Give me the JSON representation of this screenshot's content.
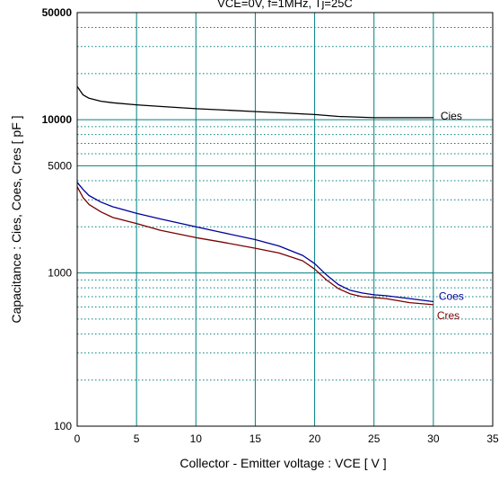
{
  "chart_data": {
    "type": "line",
    "title": "VCE=0V, f=1MHz, Tj=25C",
    "xlabel": "Collector - Emitter voltage  :  VCE  [ V ]",
    "ylabel": "Capacitance  :  Cies, Coes, Cres  [ pF ]",
    "xlim": [
      0,
      35
    ],
    "ylim": [
      100,
      50000
    ],
    "yscale": "log",
    "x_ticks": [
      "0",
      "5",
      "10",
      "15",
      "20",
      "25",
      "30",
      "35"
    ],
    "y_ticks": [
      {
        "value": 100,
        "label": "100"
      },
      {
        "value": 1000,
        "label": "1000"
      },
      {
        "value": 5000,
        "label": "5000"
      },
      {
        "value": 10000,
        "label": "10000"
      },
      {
        "value": 50000,
        "label": "50000"
      }
    ],
    "grid": true,
    "series": [
      {
        "name": "Cies",
        "color": "#000000",
        "points": [
          [
            0,
            16500
          ],
          [
            0.5,
            14500
          ],
          [
            1,
            13800
          ],
          [
            2,
            13200
          ],
          [
            3,
            12900
          ],
          [
            5,
            12500
          ],
          [
            7,
            12200
          ],
          [
            10,
            11800
          ],
          [
            12,
            11600
          ],
          [
            15,
            11300
          ],
          [
            17,
            11100
          ],
          [
            20,
            10800
          ],
          [
            22,
            10500
          ],
          [
            25,
            10300
          ],
          [
            28,
            10300
          ],
          [
            30,
            10300
          ]
        ]
      },
      {
        "name": "Coes",
        "color": "#000099",
        "points": [
          [
            0,
            3900
          ],
          [
            0.5,
            3500
          ],
          [
            1,
            3200
          ],
          [
            2,
            2900
          ],
          [
            3,
            2700
          ],
          [
            5,
            2450
          ],
          [
            7,
            2250
          ],
          [
            10,
            2000
          ],
          [
            12,
            1850
          ],
          [
            15,
            1650
          ],
          [
            17,
            1500
          ],
          [
            19,
            1300
          ],
          [
            20,
            1150
          ],
          [
            21,
            970
          ],
          [
            22,
            840
          ],
          [
            23,
            770
          ],
          [
            24,
            740
          ],
          [
            25,
            720
          ],
          [
            26,
            710
          ],
          [
            28,
            680
          ],
          [
            30,
            650
          ]
        ]
      },
      {
        "name": "Cres",
        "color": "#7a0000",
        "points": [
          [
            0,
            3650
          ],
          [
            0.5,
            3100
          ],
          [
            1,
            2800
          ],
          [
            2,
            2500
          ],
          [
            3,
            2300
          ],
          [
            5,
            2100
          ],
          [
            7,
            1900
          ],
          [
            10,
            1700
          ],
          [
            12,
            1600
          ],
          [
            15,
            1450
          ],
          [
            17,
            1350
          ],
          [
            19,
            1200
          ],
          [
            20,
            1060
          ],
          [
            21,
            900
          ],
          [
            22,
            790
          ],
          [
            23,
            730
          ],
          [
            24,
            700
          ],
          [
            25,
            690
          ],
          [
            26,
            680
          ],
          [
            28,
            640
          ],
          [
            30,
            620
          ]
        ]
      }
    ],
    "series_labels": [
      {
        "text": "Cies",
        "series": 0
      },
      {
        "text": "Coes",
        "series": 1
      },
      {
        "text": "Cres",
        "series": 2
      }
    ]
  },
  "colors": {
    "grid_major": "#008080",
    "grid_minor": "#008080",
    "frame": "#000000",
    "cies": "#000000",
    "coes": "#000099",
    "cres": "#7a0000"
  }
}
